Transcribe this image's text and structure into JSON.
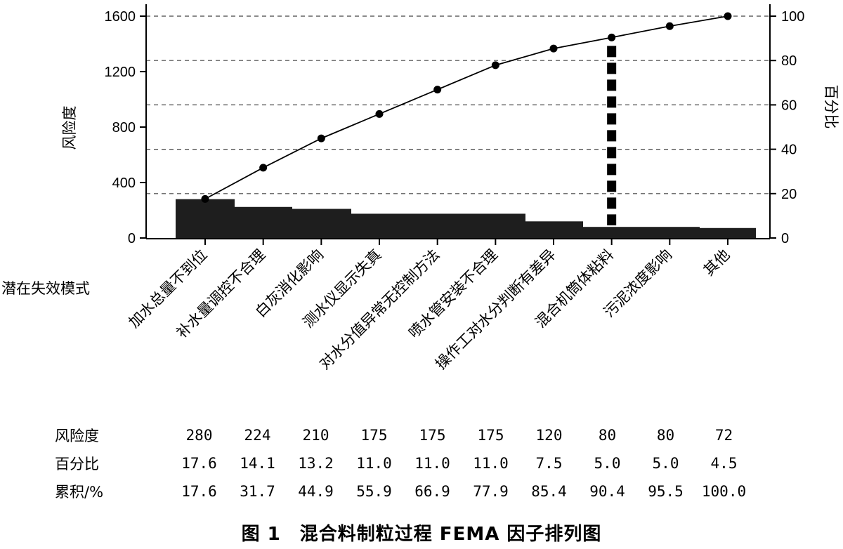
{
  "chart_data": {
    "type": "bar",
    "xlabel": "潜在失效模式",
    "ylabel": "风险度",
    "y2label": "百分比",
    "ylim": [
      0,
      1600
    ],
    "y2lim": [
      0,
      100
    ],
    "yticks": [
      "0",
      "400",
      "800",
      "1200",
      "1600"
    ],
    "y2ticks": [
      "0",
      "20",
      "40",
      "60",
      "80",
      "100"
    ],
    "grid": "horizontal dashed",
    "categories": [
      "加水总量不到位",
      "补水量调控不合理",
      "白灰消化影响",
      "测水仪显示失真",
      "对水分值异常无控制方法",
      "喷水管安装不合理",
      "操作工对水分判断有差异",
      "混合机筒体粘料",
      "污泥浓度影响",
      "其他"
    ],
    "series": [
      {
        "name": "风险度",
        "type": "bar",
        "values": [
          280,
          224,
          210,
          175,
          175,
          175,
          120,
          80,
          80,
          72
        ]
      },
      {
        "name": "累积/%",
        "type": "line",
        "values": [
          17.6,
          31.7,
          44.9,
          55.9,
          66.9,
          77.9,
          85.4,
          90.4,
          95.5,
          100.0
        ]
      }
    ],
    "cutoff_category": "混合机筒体粘料"
  },
  "table": {
    "rows": [
      {
        "label": "风险度",
        "values": [
          "280",
          "224",
          "210",
          "175",
          "175",
          "175",
          "120",
          "80",
          "80",
          "72"
        ]
      },
      {
        "label": "百分比",
        "values": [
          "17.6",
          "14.1",
          "13.2",
          "11.0",
          "11.0",
          "11.0",
          "7.5",
          "5.0",
          "5.0",
          "4.5"
        ]
      },
      {
        "label": "累积/%",
        "values": [
          "17.6",
          "31.7",
          "44.9",
          "55.9",
          "66.9",
          "77.9",
          "85.4",
          "90.4",
          "95.5",
          "100.0"
        ]
      }
    ]
  },
  "caption": "图 1　混合料制粒过程 FEMA 因子排列图"
}
